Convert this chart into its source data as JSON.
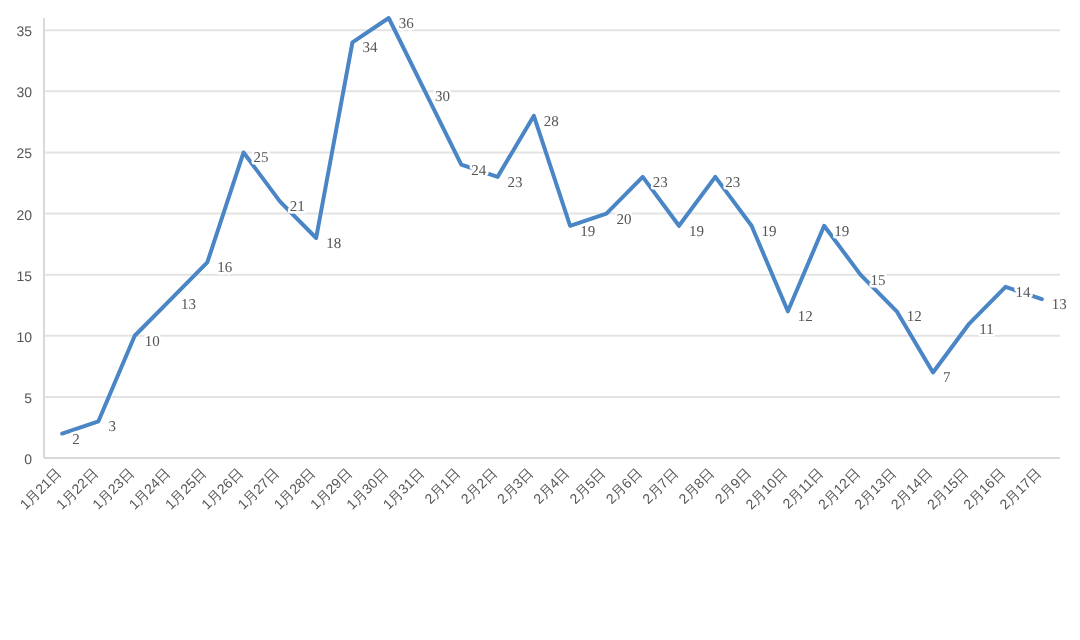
{
  "chart_data": {
    "type": "line",
    "categories": [
      "1月21日",
      "1月22日",
      "1月23日",
      "1月24日",
      "1月25日",
      "1月26日",
      "1月27日",
      "1月28日",
      "1月29日",
      "1月30日",
      "1月31日",
      "2月1日",
      "2月2日",
      "2月3日",
      "2月4日",
      "2月5日",
      "2月6日",
      "2月7日",
      "2月8日",
      "2月9日",
      "2月10日",
      "2月11日",
      "2月12日",
      "2月13日",
      "2月14日",
      "2月15日",
      "2月16日",
      "2月17日"
    ],
    "series": [
      {
        "color": "#4a86c5",
        "values": [
          2,
          3,
          10,
          13,
          16,
          25,
          21,
          18,
          34,
          36,
          30,
          24,
          23,
          28,
          19,
          20,
          23,
          19,
          23,
          19,
          12,
          19,
          15,
          12,
          7,
          11,
          14,
          13
        ]
      }
    ],
    "ylim": [
      0,
      36
    ],
    "yticks": [
      0,
      5,
      10,
      15,
      20,
      25,
      30,
      35
    ],
    "grid": "y",
    "data_labels": true,
    "marker": "none",
    "line_style": "solid"
  }
}
